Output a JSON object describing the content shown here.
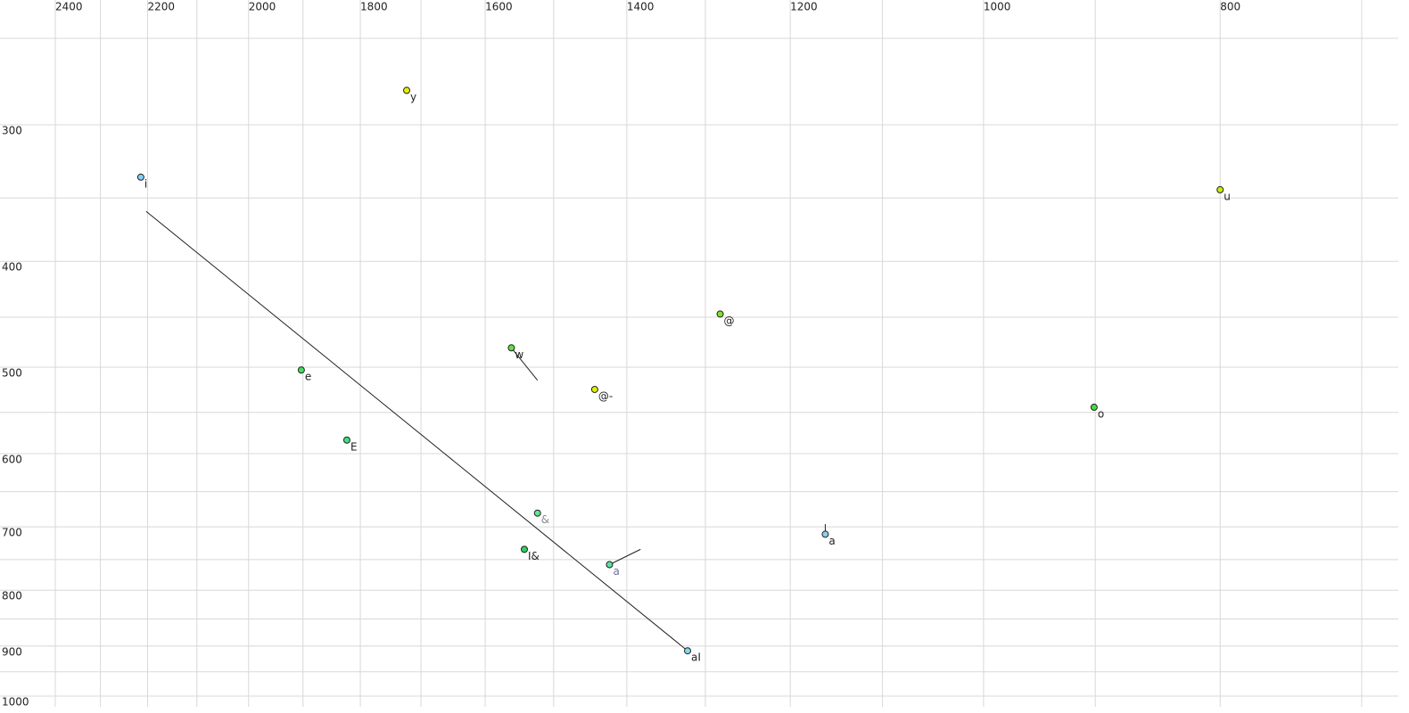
{
  "chart_data": {
    "type": "scatter",
    "xscale": "log",
    "yscale": "log",
    "xlim": [
      2400,
      700
    ],
    "ylim": [
      250,
      1000
    ],
    "xticks": [
      2400,
      2200,
      2000,
      1800,
      1600,
      1400,
      1200,
      1000,
      800
    ],
    "minor_xticks": [
      2300,
      2100,
      1900,
      1700,
      1500,
      1300,
      1100,
      900,
      700
    ],
    "yticks": [
      300,
      400,
      500,
      600,
      700,
      800,
      900,
      1000
    ],
    "minor_yticks": [
      250,
      350,
      450,
      550,
      650,
      750,
      850,
      950
    ],
    "grid": true,
    "points": [
      {
        "label": "i",
        "x": 2214,
        "y": 335,
        "color": "#87cefa"
      },
      {
        "label": "y",
        "x": 1723,
        "y": 279,
        "color": "#e8f000"
      },
      {
        "label": "u",
        "x": 800,
        "y": 344,
        "color": "#c8f000"
      },
      {
        "label": "@",
        "x": 1282,
        "y": 447,
        "color": "#80e030"
      },
      {
        "label": "w",
        "x": 1561,
        "y": 480,
        "color": "#60e040",
        "trajectory": [
          1523,
          514
        ]
      },
      {
        "label": "@-",
        "x": 1443,
        "y": 524,
        "color": "#e0f000"
      },
      {
        "label": "e",
        "x": 1903,
        "y": 503,
        "color": "#40e060"
      },
      {
        "label": "o",
        "x": 901,
        "y": 544,
        "color": "#40e040"
      },
      {
        "label": "E",
        "x": 1823,
        "y": 583,
        "color": "#40e080"
      },
      {
        "label": "&",
        "x": 1523,
        "y": 680,
        "color": "#60e890",
        "label_color": "#8a8a8a"
      },
      {
        "label": "I&",
        "x": 1542,
        "y": 734,
        "color": "#30d060"
      },
      {
        "label": "a",
        "x": 1423,
        "y": 758,
        "color": "#60e0a0",
        "label_color": "#7070a0",
        "trajectory": [
          1382,
          734
        ]
      },
      {
        "label": "a",
        "x": 1161,
        "y": 711,
        "color": "#87d0f0",
        "trajectory": [
          1161,
          696
        ]
      },
      {
        "label": "aI",
        "x": 1322,
        "y": 909,
        "color": "#80d8f0",
        "trajectory": [
          2203,
          360
        ]
      }
    ]
  }
}
